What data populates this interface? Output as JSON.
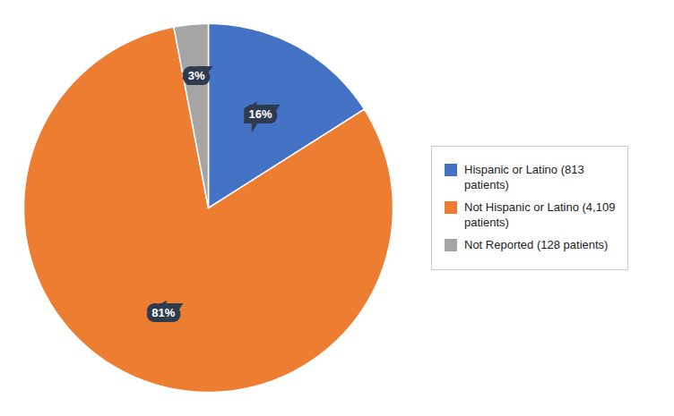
{
  "chart_data": {
    "type": "pie",
    "categories": [
      "Hispanic or Latino (813\npatients)",
      "Not Hispanic or Latino (4,109\npatients)",
      "Not Reported (128 patients)"
    ],
    "values": [
      16,
      81,
      3
    ],
    "value_labels": [
      "16%",
      "81%",
      "3%"
    ],
    "colors": [
      "#4472C4",
      "#ED7D31",
      "#A5A5A5"
    ],
    "data_labels": true,
    "legend": "right"
  }
}
